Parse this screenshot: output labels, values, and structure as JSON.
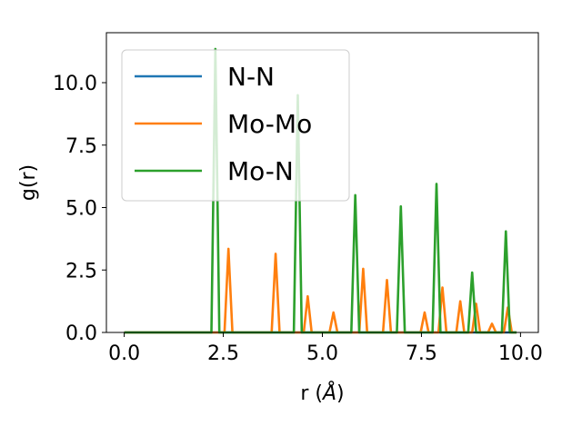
{
  "chart_data": {
    "type": "line",
    "xlabel": "r (",
    "xlabel_unit": "Å",
    "xlabel_close": ")",
    "ylabel": "g(r)",
    "xlim": [
      -0.45,
      10.45
    ],
    "ylim": [
      0,
      12
    ],
    "xticks": [
      0.0,
      2.5,
      5.0,
      7.5,
      10.0
    ],
    "xtick_labels": [
      "0.0",
      "2.5",
      "5.0",
      "7.5",
      "10.0"
    ],
    "yticks": [
      0.0,
      2.5,
      5.0,
      7.5,
      10.0
    ],
    "ytick_labels": [
      "0.0",
      "2.5",
      "5.0",
      "7.5",
      "10.0"
    ],
    "grid": false,
    "legend_position": "top-left",
    "series": [
      {
        "name": "N-N",
        "color": "#1f77b4",
        "points": [
          [
            0,
            0
          ],
          [
            9.9,
            0
          ]
        ]
      },
      {
        "name": "Mo-Mo",
        "color": "#ff7f0e",
        "points": [
          [
            0,
            0
          ],
          [
            2.53,
            0
          ],
          [
            2.63,
            3.35
          ],
          [
            2.73,
            0
          ],
          [
            3.72,
            0
          ],
          [
            3.82,
            3.15
          ],
          [
            3.92,
            0
          ],
          [
            4.53,
            0
          ],
          [
            4.63,
            1.45
          ],
          [
            4.73,
            0
          ],
          [
            5.18,
            0
          ],
          [
            5.28,
            0.8
          ],
          [
            5.38,
            0
          ],
          [
            5.93,
            0
          ],
          [
            6.03,
            2.55
          ],
          [
            6.13,
            0
          ],
          [
            6.53,
            0
          ],
          [
            6.63,
            2.1
          ],
          [
            6.73,
            0
          ],
          [
            7.48,
            0
          ],
          [
            7.58,
            0.8
          ],
          [
            7.68,
            0
          ],
          [
            7.93,
            0
          ],
          [
            8.03,
            1.8
          ],
          [
            8.13,
            0
          ],
          [
            8.38,
            0
          ],
          [
            8.48,
            1.25
          ],
          [
            8.58,
            0
          ],
          [
            8.78,
            0
          ],
          [
            8.88,
            1.15
          ],
          [
            8.98,
            0
          ],
          [
            9.18,
            0
          ],
          [
            9.28,
            0.35
          ],
          [
            9.38,
            0
          ],
          [
            9.58,
            0
          ],
          [
            9.68,
            1.0
          ],
          [
            9.78,
            0
          ],
          [
            9.9,
            0
          ]
        ]
      },
      {
        "name": "Mo-N",
        "color": "#2ca02c",
        "points": [
          [
            0,
            0
          ],
          [
            2.2,
            0
          ],
          [
            2.3,
            11.35
          ],
          [
            2.4,
            0
          ],
          [
            4.28,
            0
          ],
          [
            4.38,
            9.5
          ],
          [
            4.48,
            0
          ],
          [
            5.73,
            0
          ],
          [
            5.83,
            5.5
          ],
          [
            5.93,
            0
          ],
          [
            6.88,
            0
          ],
          [
            6.98,
            5.05
          ],
          [
            7.08,
            0
          ],
          [
            7.78,
            0
          ],
          [
            7.88,
            5.95
          ],
          [
            7.98,
            0
          ],
          [
            8.68,
            0
          ],
          [
            8.78,
            2.4
          ],
          [
            8.88,
            0
          ],
          [
            9.53,
            0
          ],
          [
            9.63,
            4.05
          ],
          [
            9.73,
            0
          ],
          [
            9.9,
            0
          ]
        ]
      }
    ]
  }
}
